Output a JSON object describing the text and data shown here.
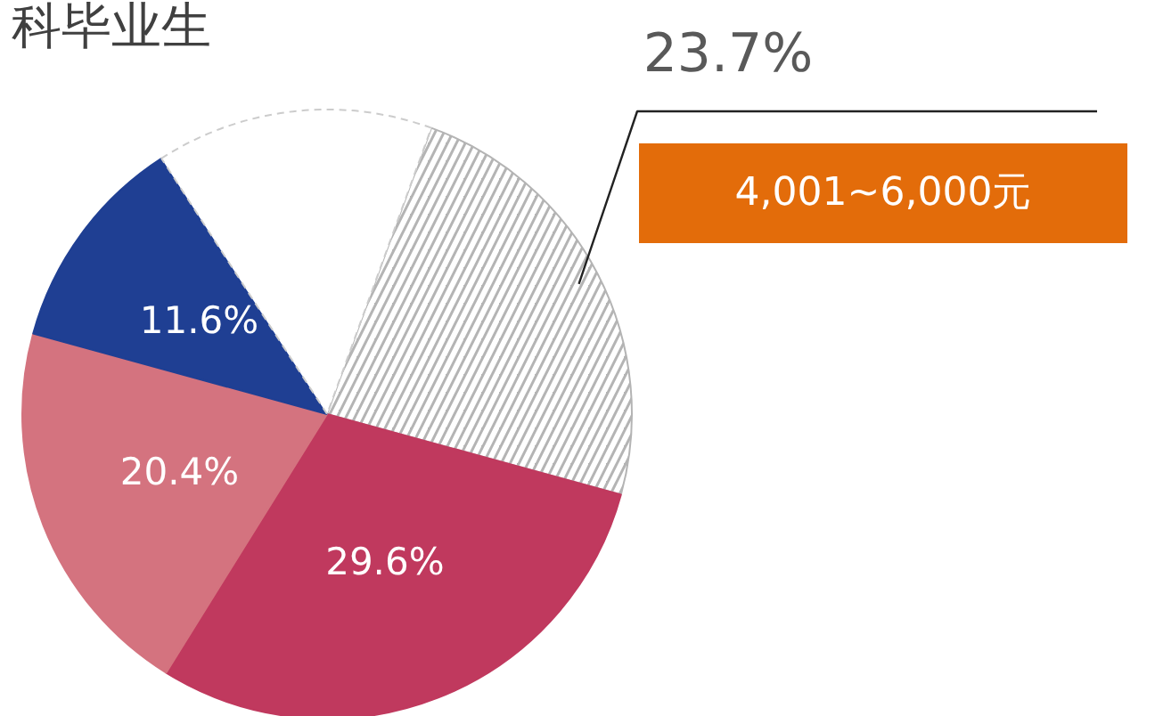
{
  "chart_data": {
    "type": "pie",
    "title": "科毕业生",
    "categories": [
      "4,001~6,000元",
      null,
      null,
      null,
      null
    ],
    "values": [
      23.7,
      29.6,
      20.4,
      11.6,
      14.7
    ],
    "colors": [
      "#b4b4b4",
      "#c0395e",
      "#d4737f",
      "#1f3f93",
      "#ffffff"
    ],
    "value_labels": [
      "23.7%",
      "29.6%",
      "20.4%",
      "11.6%",
      null
    ]
  }
}
